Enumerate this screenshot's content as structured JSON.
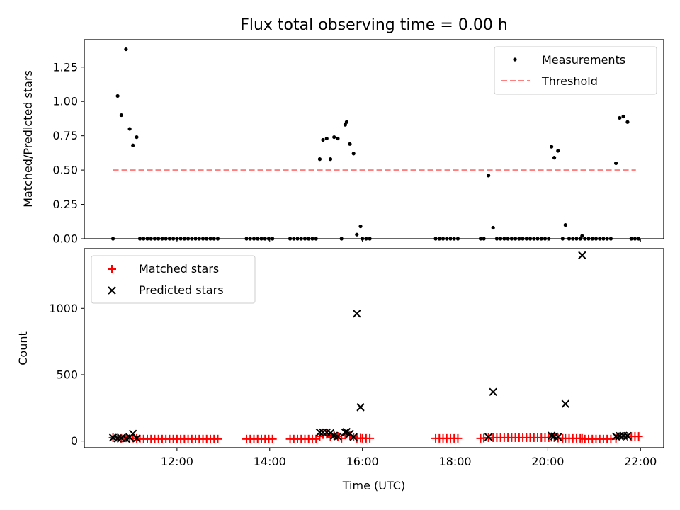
{
  "chart_data": [
    {
      "type": "scatter",
      "title": "Flux total observing time = 0.00 h",
      "xlabel": "",
      "ylabel": "Matched/Predicted stars",
      "xlim_hours": [
        10.0,
        22.5
      ],
      "ylim": [
        0,
        1.45
      ],
      "yticks": [
        0.0,
        0.25,
        0.5,
        0.75,
        1.0,
        1.25
      ],
      "ytick_labels": [
        "0.00",
        "0.25",
        "0.50",
        "0.75",
        "1.00",
        "1.25"
      ],
      "xticks_hours": [
        12,
        14,
        16,
        18,
        20,
        22
      ],
      "legend": {
        "placement": "upper right",
        "entries": [
          "Measurements",
          "Threshold"
        ]
      },
      "threshold": {
        "name": "Threshold",
        "value": 0.5,
        "x_range_hours": [
          10.62,
          21.9
        ],
        "color": "#ff7f7f",
        "style": "dashed"
      },
      "series": [
        {
          "name": "Measurements",
          "color": "#000000",
          "marker": "dot",
          "x_hours": [
            10.62,
            10.72,
            10.8,
            10.9,
            10.98,
            11.05,
            11.13,
            11.2,
            11.28,
            11.36,
            11.44,
            11.52,
            11.6,
            11.68,
            11.76,
            11.84,
            11.92,
            12.0,
            12.08,
            12.16,
            12.24,
            12.32,
            12.4,
            12.48,
            12.56,
            12.64,
            12.72,
            12.8,
            12.88,
            13.5,
            13.58,
            13.66,
            13.74,
            13.82,
            13.9,
            13.98,
            14.06,
            14.44,
            14.52,
            14.6,
            14.68,
            14.76,
            14.84,
            14.92,
            15.0,
            15.08,
            15.15,
            15.23,
            15.31,
            15.39,
            15.47,
            15.55,
            15.63,
            15.66,
            15.73,
            15.81,
            15.88,
            15.96,
            16.0,
            16.08,
            16.16,
            17.58,
            17.66,
            17.74,
            17.82,
            17.9,
            17.98,
            18.06,
            18.55,
            18.62,
            18.72,
            18.82,
            18.9,
            18.98,
            19.06,
            19.14,
            19.22,
            19.3,
            19.38,
            19.46,
            19.54,
            19.62,
            19.7,
            19.78,
            19.86,
            19.94,
            20.02,
            20.08,
            20.14,
            20.22,
            20.32,
            20.38,
            20.46,
            20.54,
            20.62,
            20.7,
            20.74,
            20.8,
            20.88,
            20.96,
            21.04,
            21.12,
            21.2,
            21.28,
            21.36,
            21.47,
            21.55,
            21.63,
            21.72,
            21.8,
            21.88,
            21.96
          ],
          "y": [
            0.0,
            1.04,
            0.9,
            1.38,
            0.8,
            0.68,
            0.74,
            0.0,
            0.0,
            0.0,
            0.0,
            0.0,
            0.0,
            0.0,
            0.0,
            0.0,
            0.0,
            0.0,
            0.0,
            0.0,
            0.0,
            0.0,
            0.0,
            0.0,
            0.0,
            0.0,
            0.0,
            0.0,
            0.0,
            0.0,
            0.0,
            0.0,
            0.0,
            0.0,
            0.0,
            0.0,
            0.0,
            0.0,
            0.0,
            0.0,
            0.0,
            0.0,
            0.0,
            0.0,
            0.0,
            0.58,
            0.72,
            0.73,
            0.58,
            0.74,
            0.73,
            0.0,
            0.83,
            0.85,
            0.69,
            0.62,
            0.03,
            0.09,
            0.0,
            0.0,
            0.0,
            0.0,
            0.0,
            0.0,
            0.0,
            0.0,
            0.0,
            0.0,
            0.0,
            0.0,
            0.46,
            0.08,
            0.0,
            0.0,
            0.0,
            0.0,
            0.0,
            0.0,
            0.0,
            0.0,
            0.0,
            0.0,
            0.0,
            0.0,
            0.0,
            0.0,
            0.0,
            0.67,
            0.59,
            0.64,
            0.0,
            0.1,
            0.0,
            0.0,
            0.0,
            0.0,
            0.02,
            0.0,
            0.0,
            0.0,
            0.0,
            0.0,
            0.0,
            0.0,
            0.0,
            0.55,
            0.88,
            0.89,
            0.85,
            0.0,
            0.0,
            0.0
          ]
        }
      ]
    },
    {
      "type": "scatter",
      "title": "",
      "xlabel": "Time (UTC)",
      "ylabel": "Count",
      "xlim_hours": [
        10.0,
        22.5
      ],
      "ylim": [
        -50,
        1450
      ],
      "yticks": [
        0,
        500,
        1000
      ],
      "ytick_labels": [
        "0",
        "500",
        "1000"
      ],
      "xticks_hours": [
        12,
        14,
        16,
        18,
        20,
        22
      ],
      "xtick_labels": [
        "12:00",
        "14:00",
        "16:00",
        "18:00",
        "20:00",
        "22:00"
      ],
      "legend": {
        "placement": "upper left",
        "entries": [
          "Matched stars",
          "Predicted stars"
        ]
      },
      "series": [
        {
          "name": "Matched stars",
          "color": "#ff0000",
          "marker": "plus",
          "x_hours": [
            10.62,
            10.72,
            10.8,
            10.9,
            10.98,
            11.05,
            11.13,
            11.2,
            11.28,
            11.36,
            11.44,
            11.52,
            11.6,
            11.68,
            11.76,
            11.84,
            11.92,
            12.0,
            12.08,
            12.16,
            12.24,
            12.32,
            12.4,
            12.48,
            12.56,
            12.64,
            12.72,
            12.8,
            12.88,
            13.5,
            13.58,
            13.66,
            13.74,
            13.82,
            13.9,
            13.98,
            14.06,
            14.44,
            14.52,
            14.6,
            14.68,
            14.76,
            14.84,
            14.92,
            15.0,
            15.08,
            15.15,
            15.23,
            15.31,
            15.39,
            15.47,
            15.55,
            15.63,
            15.66,
            15.73,
            15.81,
            15.88,
            15.96,
            16.0,
            16.08,
            16.16,
            17.58,
            17.66,
            17.74,
            17.82,
            17.9,
            17.98,
            18.06,
            18.55,
            18.62,
            18.72,
            18.82,
            18.9,
            18.98,
            19.06,
            19.14,
            19.22,
            19.3,
            19.38,
            19.46,
            19.54,
            19.62,
            19.7,
            19.78,
            19.86,
            19.94,
            20.02,
            20.08,
            20.14,
            20.22,
            20.32,
            20.38,
            20.46,
            20.54,
            20.62,
            20.7,
            20.74,
            20.8,
            20.88,
            20.96,
            21.04,
            21.12,
            21.2,
            21.28,
            21.36,
            21.47,
            21.55,
            21.63,
            21.72,
            21.8,
            21.88,
            21.96
          ],
          "y": [
            25,
            22,
            20,
            24,
            18,
            22,
            20,
            15,
            15,
            15,
            15,
            15,
            15,
            15,
            15,
            15,
            15,
            15,
            15,
            15,
            15,
            15,
            15,
            15,
            15,
            15,
            15,
            15,
            15,
            15,
            15,
            15,
            15,
            15,
            15,
            15,
            15,
            15,
            15,
            15,
            15,
            15,
            15,
            15,
            15,
            35,
            48,
            50,
            30,
            40,
            35,
            20,
            45,
            50,
            40,
            30,
            20,
            22,
            20,
            20,
            20,
            20,
            20,
            20,
            20,
            20,
            20,
            20,
            20,
            22,
            25,
            25,
            25,
            25,
            25,
            25,
            25,
            25,
            25,
            25,
            25,
            25,
            25,
            25,
            25,
            25,
            25,
            28,
            25,
            22,
            20,
            20,
            20,
            20,
            20,
            20,
            20,
            15,
            15,
            15,
            15,
            15,
            15,
            15,
            15,
            20,
            32,
            35,
            35,
            35,
            35,
            35
          ]
        },
        {
          "name": "Predicted stars",
          "color": "#000000",
          "marker": "x",
          "x_hours": [
            10.62,
            10.72,
            10.8,
            10.9,
            10.98,
            11.05,
            11.13,
            15.08,
            15.15,
            15.23,
            15.31,
            15.39,
            15.47,
            15.63,
            15.66,
            15.73,
            15.81,
            15.88,
            15.96,
            18.72,
            18.82,
            20.08,
            20.14,
            20.22,
            20.38,
            20.74,
            21.47,
            21.55,
            21.63,
            21.72
          ],
          "y": [
            25,
            20,
            22,
            18,
            28,
            55,
            20,
            65,
            65,
            65,
            60,
            40,
            35,
            65,
            70,
            55,
            30,
            960,
            255,
            30,
            370,
            40,
            35,
            30,
            280,
            1400,
            35,
            38,
            40,
            38
          ]
        }
      ]
    }
  ]
}
